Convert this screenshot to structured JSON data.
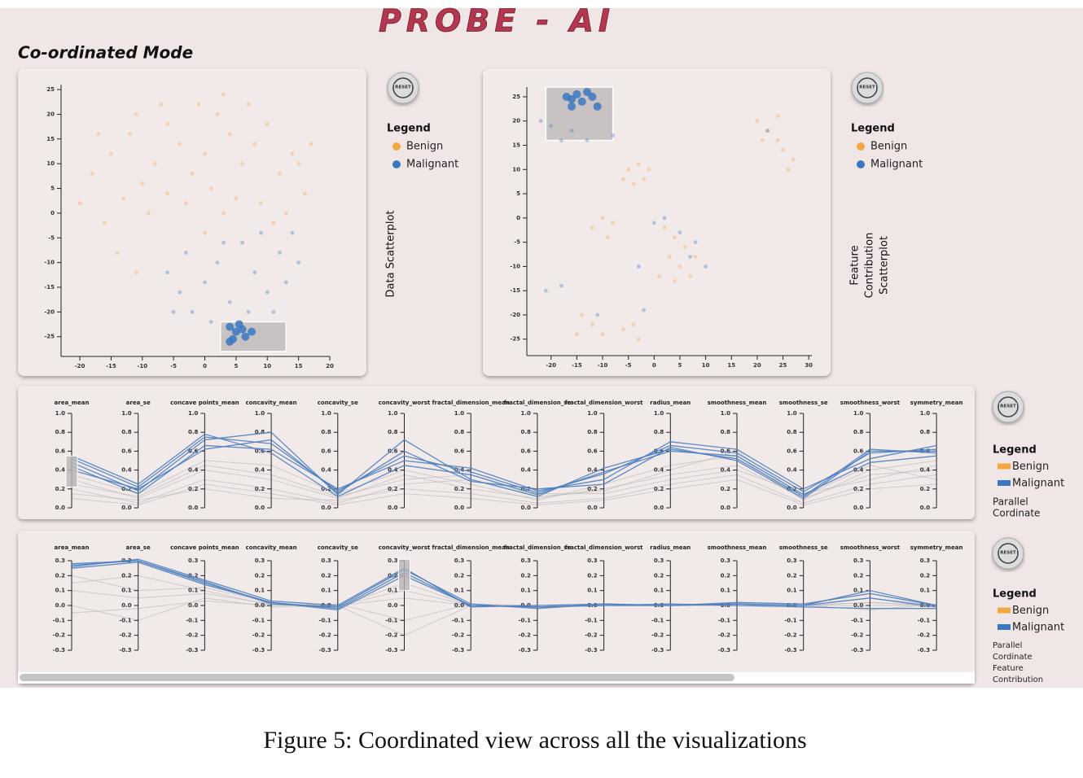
{
  "title": "PROBE - AI",
  "mode": "Co-ordinated Mode",
  "reset": "RESET",
  "legend_title": "Legend",
  "classes": [
    {
      "name": "Benign",
      "color": "#f5a742"
    },
    {
      "name": "Malignant",
      "color": "#3a78c2"
    }
  ],
  "scatter_views": [
    {
      "label": [
        "Data Scatterplot"
      ],
      "xlim": [
        -23,
        20
      ],
      "ylim": [
        -29,
        26
      ],
      "xticks": [
        -20,
        -15,
        -10,
        -5,
        0,
        5,
        10,
        15,
        20
      ],
      "yticks": [
        25,
        20,
        15,
        10,
        5,
        0,
        -5,
        -10,
        -15,
        -20,
        -25
      ],
      "series": [
        {
          "x": [
            -18,
            -15,
            -12,
            -10,
            -8,
            -6,
            -4,
            -2,
            0,
            2,
            4,
            6,
            8,
            10,
            12,
            14,
            16,
            -20,
            -16,
            -13,
            -9,
            -6,
            -3,
            1,
            3,
            5,
            9,
            11,
            13,
            15,
            -11,
            -7,
            -1,
            3,
            7,
            -17,
            -14,
            -11,
            17,
            0
          ],
          "y": [
            8,
            12,
            16,
            6,
            10,
            18,
            14,
            8,
            12,
            20,
            16,
            10,
            14,
            18,
            8,
            12,
            4,
            2,
            -2,
            3,
            0,
            4,
            2,
            5,
            0,
            3,
            2,
            -2,
            0,
            10,
            20,
            22,
            22,
            24,
            22,
            16,
            -8,
            -12,
            14,
            -4
          ]
        },
        {
          "x": [
            -6,
            -4,
            -2,
            0,
            2,
            4,
            6,
            8,
            10,
            12,
            14,
            11,
            -3,
            1,
            7,
            13,
            9,
            -5,
            3,
            15
          ],
          "y": [
            -12,
            -16,
            -20,
            -14,
            -10,
            -18,
            -6,
            -12,
            -16,
            -8,
            -4,
            -20,
            -8,
            -22,
            -20,
            -14,
            -4,
            -20,
            -6,
            -10
          ]
        }
      ],
      "selected": {
        "x": [
          4,
          5,
          6,
          4.5,
          6.5,
          7.5,
          5.5,
          4
        ],
        "y": [
          -23,
          -24,
          -23.5,
          -25.5,
          -25,
          -24,
          -22.5,
          -26
        ]
      },
      "brush": {
        "x": [
          2.5,
          13
        ],
        "y": [
          -28,
          -22
        ]
      }
    },
    {
      "label": [
        "Feature",
        "Contribution",
        "Scatterplot"
      ],
      "xlim": [
        -24.7,
        30.6
      ],
      "ylim": [
        -28.4,
        27
      ],
      "xticks": [
        -20,
        -15,
        -10,
        -5,
        0,
        5,
        10,
        15,
        20,
        25,
        30
      ],
      "yticks": [
        25,
        20,
        15,
        10,
        5,
        0,
        -5,
        -10,
        -15,
        -20,
        -25
      ],
      "series": [
        {
          "x": [
            20,
            22,
            24,
            21,
            25,
            27,
            26,
            -5,
            -3,
            -6,
            -2,
            -4,
            -10,
            -8,
            -12,
            -9,
            2,
            4,
            6,
            3,
            5,
            7,
            4,
            -14,
            -12,
            -10,
            -15,
            -4,
            -3,
            -6,
            8,
            1,
            24,
            -1
          ],
          "y": [
            20,
            18,
            21,
            16,
            14,
            12,
            10,
            10,
            11,
            8,
            8,
            7,
            0,
            -1,
            -2,
            -4,
            -2,
            -4,
            -6,
            -8,
            -10,
            -12,
            -13,
            -20,
            -22,
            -24,
            -24,
            -22,
            -25,
            -23,
            -8,
            -12,
            16,
            10
          ]
        },
        {
          "x": [
            -20,
            -22,
            -18,
            -16,
            -13,
            -8,
            0,
            2,
            5,
            8,
            10,
            -3,
            -21,
            -18,
            -11,
            -2,
            22,
            7
          ],
          "y": [
            19,
            20,
            16,
            18,
            16,
            17,
            -1,
            0,
            -3,
            -5,
            -10,
            -10,
            -15,
            -14,
            -20,
            -19,
            18,
            -8
          ]
        }
      ],
      "selected": {
        "x": [
          -17,
          -15,
          -13,
          -16,
          -14,
          -12,
          -11,
          -16
        ],
        "y": [
          25,
          25.5,
          26,
          23,
          24,
          25,
          23,
          24.5
        ]
      },
      "brush": {
        "x": [
          -21,
          -8
        ],
        "y": [
          16,
          27
        ]
      }
    }
  ],
  "parallel_axes": [
    "area_mean",
    "area_se",
    "concave points_mean",
    "concavity_mean",
    "concavity_se",
    "concavity_worst",
    "fractal_dimension_mean",
    "fractal_dimension_se",
    "fractal_dimension_worst",
    "radius_mean",
    "smoothness_mean",
    "smoothness_se",
    "smoothness_worst",
    "symmetry_mean"
  ],
  "parallel_views": [
    {
      "label": [
        "Parallel",
        "Cordinate"
      ],
      "ylim": [
        0,
        1
      ],
      "yticks": [
        {
          "value": 1,
          "label": "1.0"
        },
        0.8,
        0.6,
        0.4,
        0.2,
        {
          "value": 0,
          "label": "0.0"
        }
      ],
      "background": [
        [
          0.3,
          0.1,
          0.4,
          0.3,
          0.1,
          0.35,
          0.2,
          0.1,
          0.2,
          0.35,
          0.45,
          0.1,
          0.35,
          0.4
        ],
        [
          0.2,
          0.05,
          0.3,
          0.2,
          0.05,
          0.25,
          0.3,
          0.15,
          0.15,
          0.3,
          0.4,
          0.15,
          0.3,
          0.45
        ],
        [
          0.35,
          0.15,
          0.5,
          0.45,
          0.15,
          0.4,
          0.25,
          0.08,
          0.25,
          0.45,
          0.55,
          0.08,
          0.4,
          0.5
        ],
        [
          0.15,
          0.08,
          0.2,
          0.1,
          0.08,
          0.2,
          0.15,
          0.05,
          0.1,
          0.25,
          0.35,
          0.05,
          0.25,
          0.35
        ],
        [
          0.25,
          0.12,
          0.45,
          0.35,
          0.12,
          0.3,
          0.35,
          0.12,
          0.18,
          0.4,
          0.6,
          0.12,
          0.45,
          0.3
        ],
        [
          0.1,
          0.03,
          0.25,
          0.15,
          0.03,
          0.15,
          0.1,
          0.03,
          0.08,
          0.2,
          0.3,
          0.03,
          0.2,
          0.25
        ]
      ],
      "highlight": [
        [
          0.52,
          0.22,
          0.75,
          0.68,
          0.18,
          0.55,
          0.38,
          0.16,
          0.36,
          0.66,
          0.58,
          0.17,
          0.58,
          0.62
        ],
        [
          0.48,
          0.18,
          0.72,
          0.8,
          0.14,
          0.72,
          0.3,
          0.12,
          0.42,
          0.62,
          0.52,
          0.12,
          0.62,
          0.58
        ],
        [
          0.44,
          0.15,
          0.66,
          0.62,
          0.2,
          0.5,
          0.42,
          0.18,
          0.3,
          0.7,
          0.62,
          0.2,
          0.52,
          0.66
        ],
        [
          0.55,
          0.25,
          0.78,
          0.58,
          0.12,
          0.45,
          0.35,
          0.14,
          0.38,
          0.6,
          0.55,
          0.14,
          0.48,
          0.55
        ],
        [
          0.4,
          0.2,
          0.62,
          0.72,
          0.16,
          0.6,
          0.28,
          0.2,
          0.25,
          0.64,
          0.5,
          0.1,
          0.6,
          0.6
        ]
      ],
      "brush": {
        "axis": 0,
        "range": [
          0.22,
          0.55
        ]
      }
    },
    {
      "label": [
        "Parallel",
        "Cordinate",
        "Feature",
        "Contribution"
      ],
      "ylim": [
        -0.3,
        0.3
      ],
      "yticks": [
        0.3,
        0.2,
        0.1,
        {
          "value": 0,
          "label": "0.0"
        },
        -0.1,
        -0.2,
        -0.3
      ],
      "background": [
        [
          0.1,
          0.05,
          0.08,
          0.01,
          0.0,
          0.05,
          0.0,
          0.0,
          0.0,
          0.0,
          0.0,
          0.0,
          0.02,
          0.0
        ],
        [
          -0.05,
          -0.02,
          0.03,
          0.0,
          0.01,
          -0.1,
          0.01,
          0.0,
          0.0,
          0.0,
          0.01,
          0.0,
          -0.03,
          0.01
        ],
        [
          0.2,
          0.1,
          0.12,
          0.02,
          -0.01,
          0.15,
          0.0,
          0.0,
          0.0,
          0.0,
          0.0,
          0.0,
          0.0,
          0.0
        ],
        [
          0.0,
          -0.1,
          0.05,
          -0.01,
          0.0,
          -0.2,
          0.0,
          0.0,
          0.0,
          0.0,
          0.0,
          0.0,
          0.02,
          0.0
        ],
        [
          0.15,
          0.2,
          0.1,
          0.0,
          0.0,
          0.1,
          0.0,
          0.0,
          0.0,
          0.0,
          0.0,
          0.0,
          0.05,
          0.0
        ]
      ],
      "highlight": [
        [
          0.27,
          0.3,
          0.15,
          0.02,
          -0.02,
          0.22,
          0.0,
          -0.01,
          0.0,
          0.0,
          0.01,
          0.0,
          0.05,
          -0.01
        ],
        [
          0.28,
          0.3,
          0.16,
          0.01,
          -0.01,
          0.24,
          0.01,
          -0.02,
          0.01,
          0.0,
          0.02,
          0.01,
          0.08,
          0.0
        ],
        [
          0.25,
          0.29,
          0.14,
          0.02,
          -0.03,
          0.2,
          0.0,
          -0.01,
          0.0,
          0.01,
          0.0,
          -0.01,
          -0.02,
          -0.02
        ],
        [
          0.26,
          0.31,
          0.17,
          0.03,
          0.0,
          0.25,
          -0.01,
          0.0,
          0.01,
          0.0,
          0.01,
          0.0,
          0.1,
          0.0
        ]
      ],
      "brush": {
        "axis": 5,
        "range": [
          0.1,
          0.31
        ]
      }
    }
  ],
  "caption": "Figure 5: Coordinated view across all the visualizations"
}
